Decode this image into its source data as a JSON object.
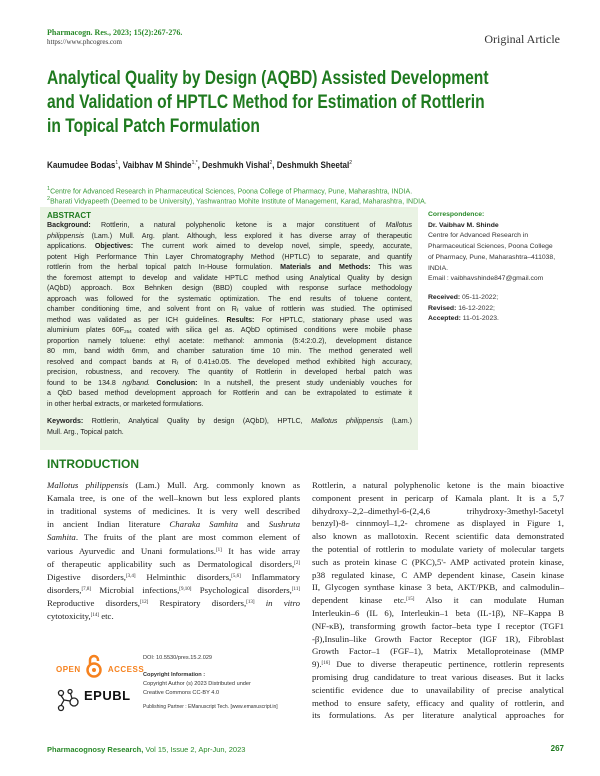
{
  "header": {
    "journal_ref": "Pharmacogn. Res., 2023; 15(2):267-276.",
    "url": "https://www.phcogres.com",
    "article_type": "Original Article"
  },
  "title_lines": [
    "Analytical Quality by Design (AQBD) Assisted Development",
    "and Validation of HPTLC Method for Estimation of Rottlerin",
    "in Topical Patch Formulation"
  ],
  "authors": [
    {
      "name": "Kaumudee Bodas",
      "sup": "1"
    },
    {
      "name": "Vaibhav M Shinde",
      "sup": "1,*"
    },
    {
      "name": "Deshmukh Vishal",
      "sup": "2"
    },
    {
      "name": "Deshmukh Sheetal",
      "sup": "2"
    }
  ],
  "affiliations": [
    {
      "sup": "1",
      "text": "Centre for Advanced Research in Pharmaceutical Sciences, Poona College of Pharmacy, Pune, Maharashtra, INDIA."
    },
    {
      "sup": "2",
      "text": "Bharati Vidyapeeth (Deemed to be University), Yashwantrao Mohite Institute of Management, Karad, Maharashtra, INDIA."
    }
  ],
  "abstract": {
    "heading": "ABSTRACT",
    "lines": [
      [
        {
          "t": "Background: ",
          "b": true
        },
        {
          "t": "Rottlerin, a natural polyphenolic ketone is a major constituent of "
        },
        {
          "t": "Mallotus",
          "i": true
        }
      ],
      [
        {
          "t": "philippensis",
          "i": true
        },
        {
          "t": " (Lam.) Mull. Arg. plant. Although, less explored it has diverse array of therapeutic"
        }
      ],
      [
        {
          "t": "applications. "
        },
        {
          "t": "Objectives:",
          "b": true
        },
        {
          "t": " The current work aimed to develop novel, simple, speedy, accurate,"
        }
      ],
      [
        {
          "t": "potent High Performance Thin Layer Chromatography Method (HPTLC) to separate, and quantify"
        }
      ],
      [
        {
          "t": "rottlerin from the herbal topical patch In-House formulation. "
        },
        {
          "t": "Materials and Methods:",
          "b": true
        },
        {
          "t": " This was"
        }
      ],
      [
        {
          "t": "the foremost attempt to develop and validate HPTLC method using Analytical Quality by design"
        }
      ],
      [
        {
          "t": "(AQbD) approach. Box Behnken design (BBD) coupled with response surface methodology"
        }
      ],
      [
        {
          "t": "approach was followed for the systematic optimization. The end results of toluene content,"
        }
      ],
      [
        {
          "t": "chamber conditioning time, and solvent front on R"
        },
        {
          "t": "f",
          "sub": true
        },
        {
          "t": " value of rottlerin was studied. The optimised"
        }
      ],
      [
        {
          "t": "method was validated as per ICH guidelines. "
        },
        {
          "t": "Results:",
          "b": true
        },
        {
          "t": " For HPTLC, stationary phase used was"
        }
      ],
      [
        {
          "t": "aluminium plates 60F"
        },
        {
          "t": "254",
          "sub": true
        },
        {
          "t": " coated with silica gel as. AQbD optimised conditions were mobile phase"
        }
      ],
      [
        {
          "t": "proportion namely toluene: ethyl acetate: methanol: ammonia (5:4:2:0.2), development distance"
        }
      ],
      [
        {
          "t": "80 mm, band width 6mm, and chamber saturation time 10 min. The method generated well"
        }
      ],
      [
        {
          "t": "resolved and compact bands at R"
        },
        {
          "t": "f",
          "sub": true
        },
        {
          "t": " of 0.41±0.05. The developed method exhibited high accuracy,"
        }
      ],
      [
        {
          "t": "precision, robustness, and recovery. The quantity of Rottlerin in developed herbal patch was"
        }
      ],
      [
        {
          "t": "found to be 134.8 "
        },
        {
          "t": "ng/band. ",
          "i": true
        },
        {
          "t": "Conclusion:",
          "b": true
        },
        {
          "t": " In a nutshell, the present study undeniably vouches for"
        }
      ],
      [
        {
          "t": "a QbD based method development approach for Rottlerin and can be extrapolated to estimate it"
        }
      ],
      [
        {
          "t": "in other herbal extracts, or marketed formulations."
        }
      ]
    ],
    "keywords_lines": [
      [
        {
          "t": "Keywords: ",
          "b": true
        },
        {
          "t": "Rottlerin, Analytical Quality by design (AQbD), HPTLC, "
        },
        {
          "t": "Mallotus philippensis",
          "i": true
        },
        {
          "t": " (Lam.)"
        }
      ],
      [
        {
          "t": "Mull. Arg., Topical patch."
        }
      ]
    ]
  },
  "correspondence": {
    "heading": "Correspondence:",
    "name": "Dr. Vaibhav M. Shinde",
    "address_lines": [
      "Centre for Advanced Research in",
      "Pharmaceutical Sciences, Poona College",
      "of Pharmacy, Pune, Maharashtra–411038,",
      "INDIA."
    ],
    "email": "Email : vaibhavshinde847@gmail.com",
    "received_label": "Received:",
    "received": "05-11-2022;",
    "revised_label": "Revised:",
    "revised": "16-12-2022;",
    "accepted_label": "Accepted:",
    "accepted": "11-01-2023."
  },
  "introduction": {
    "heading": "INTRODUCTION",
    "left_lines": [
      [
        {
          "t": "Mallotus philippensis",
          "i": true
        },
        {
          "t": " (Lam.) Mull. Arg. commonly known as"
        }
      ],
      [
        {
          "t": "Kamala tree, is one of the well–known but less explored plants"
        }
      ],
      [
        {
          "t": "in traditional systems of medicines. It is very well described"
        }
      ],
      [
        {
          "t": "in ancient Indian literature "
        },
        {
          "t": "Charaka Samhita",
          "i": true
        },
        {
          "t": " and "
        },
        {
          "t": "Sushruta",
          "i": true
        }
      ],
      [
        {
          "t": "Samhita",
          "i": true
        },
        {
          "t": ". The fruits of the plant are most common element of"
        }
      ],
      [
        {
          "t": "various Ayurvedic and Unani formulations."
        },
        {
          "t": "[1]",
          "sup": true
        },
        {
          "t": " It has wide array"
        }
      ],
      [
        {
          "t": "of therapeutic applicability such as Dermatological disorders,"
        },
        {
          "t": "[2]",
          "sup": true
        }
      ],
      [
        {
          "t": "Digestive disorders,"
        },
        {
          "t": "[3,4]",
          "sup": true
        },
        {
          "t": " Helminthic disorders,"
        },
        {
          "t": "[5,6]",
          "sup": true
        },
        {
          "t": " Inflammatory"
        }
      ],
      [
        {
          "t": "disorders,"
        },
        {
          "t": "[7,8]",
          "sup": true
        },
        {
          "t": " Microbial infections,"
        },
        {
          "t": "[9,10]",
          "sup": true
        },
        {
          "t": " Psychological disorders,"
        },
        {
          "t": "[11]",
          "sup": true
        }
      ],
      [
        {
          "t": "Reproductive disorders,"
        },
        {
          "t": "[12]",
          "sup": true
        },
        {
          "t": " Respiratory disorders,"
        },
        {
          "t": "[13]",
          "sup": true
        },
        {
          "t": " "
        },
        {
          "t": "in vitro",
          "i": true
        }
      ],
      [
        {
          "t": "cytotoxicity,"
        },
        {
          "t": "[14]",
          "sup": true
        },
        {
          "t": " etc."
        }
      ]
    ],
    "right_lines": [
      [
        {
          "t": "Rottlerin, a natural polyphenolic ketone is the main bioactive"
        }
      ],
      [
        {
          "t": "component present in pericarp of Kamala plant. It is a 5,7"
        }
      ],
      [
        {
          "t": "dihydroxy–2,2–dimethyl-6-(2,4,6   trihydroxy-3methyl-5acetyl"
        }
      ],
      [
        {
          "t": "benzyl)-8- cinnmoyl–1,2- chromene as displayed in Figure 1,"
        }
      ],
      [
        {
          "t": "also known as mallotoxin. Recent scientific data demonstrated"
        }
      ],
      [
        {
          "t": "the potential of rottlerin to modulate variety of molecular targets"
        }
      ],
      [
        {
          "t": "such as protein kinase C (PKC),5'- AMP activated protein kinase,"
        }
      ],
      [
        {
          "t": "p38 regulated kinase, C AMP dependent kinase, Casein kinase"
        }
      ],
      [
        {
          "t": "II, Glycogen synthase kinase 3 beta, AKT/PKB, and calmodulin–"
        }
      ],
      [
        {
          "t": "dependent kinase etc."
        },
        {
          "t": "[15]",
          "sup": true
        },
        {
          "t": " Also it can modulate Human"
        }
      ],
      [
        {
          "t": "Interleukin–6 (IL 6), Interleukin–1 beta (IL-1β), NF–Kappa B"
        }
      ],
      [
        {
          "t": "(NF-κB), transforming growth factor–beta type I receptor (TGF1"
        }
      ],
      [
        {
          "t": "-β),Insulin–like Growth Factor Receptor (IGF 1R), Fibroblast"
        }
      ],
      [
        {
          "t": "Growth Factor–1 (FGF–1), Matrix Metalloproteinase (MMP"
        }
      ],
      [
        {
          "t": "9)."
        },
        {
          "t": "[16]",
          "sup": true
        },
        {
          "t": " Due to diverse therapeutic pertinence, rottlerin represents"
        }
      ],
      [
        {
          "t": "promising drug candidature to treat various diseases. But it lacks"
        }
      ],
      [
        {
          "t": "scientific evidence due to unavailability of precise analytical"
        }
      ],
      [
        {
          "t": "method to ensure safety, efficacy and quality of rottlerin, and"
        }
      ],
      [
        {
          "t": "its formulations. As per literature analytical approaches for"
        }
      ]
    ]
  },
  "logos": {
    "open_access_left": "OPEN",
    "open_access_right": "ACCESS",
    "epubl": "EPUBL",
    "open_access_color": "#f6821f"
  },
  "article_meta": {
    "doi": "DOI: 10.5530/pres.15.2.029",
    "copyright_heading": "Copyright Information :",
    "copyright_line1": "Copyright Author (s) 2023 Distributed under",
    "copyright_line2": "Creative Commons CC-BY 4.0",
    "publishing_partner": "Publishing Partner : EManuscript Tech. [www.emanuscript.in]"
  },
  "footer": {
    "journal": "Pharmacognosy Research,",
    "issue": " Vol 15, Issue 2, Apr-Jun, 2023",
    "page_number": "267"
  },
  "colors": {
    "brand_green": "#1f7a1f",
    "abstract_bg": "#eaf3e4"
  }
}
